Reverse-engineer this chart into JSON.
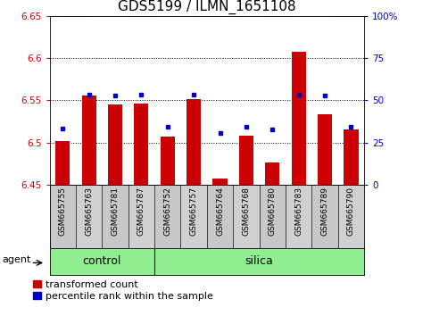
{
  "title": "GDS5199 / ILMN_1651108",
  "samples": [
    "GSM665755",
    "GSM665763",
    "GSM665781",
    "GSM665787",
    "GSM665752",
    "GSM665757",
    "GSM665764",
    "GSM665768",
    "GSM665780",
    "GSM665783",
    "GSM665789",
    "GSM665790"
  ],
  "n_control": 4,
  "n_silica": 8,
  "transformed_count": [
    6.502,
    6.556,
    6.545,
    6.546,
    6.507,
    6.552,
    6.457,
    6.508,
    6.476,
    6.607,
    6.533,
    6.516
  ],
  "percentile_rank": [
    33.5,
    53.5,
    53.0,
    53.5,
    34.5,
    53.5,
    30.5,
    34.5,
    33.0,
    53.5,
    53.0,
    34.5
  ],
  "ylim_left": [
    6.45,
    6.65
  ],
  "ylim_right": [
    0,
    100
  ],
  "yticks_left": [
    6.45,
    6.5,
    6.55,
    6.6,
    6.65
  ],
  "yticks_right": [
    0,
    25,
    50,
    75,
    100
  ],
  "bar_bottom": 6.45,
  "bar_color": "#cc0000",
  "dot_color": "#0000cc",
  "label_bg_color": "#c8c8c8",
  "group_color": "#90ee90",
  "title_fontsize": 11,
  "tick_fontsize": 7.5,
  "sample_fontsize": 6.5,
  "group_fontsize": 9,
  "legend_fontsize": 8,
  "agent_fontsize": 8
}
